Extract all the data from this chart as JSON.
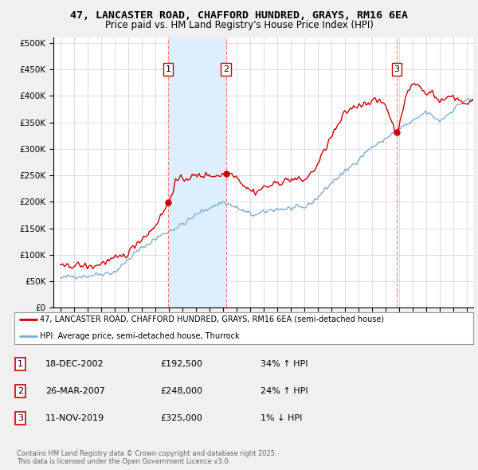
{
  "title": "47, LANCASTER ROAD, CHAFFORD HUNDRED, GRAYS, RM16 6EA",
  "subtitle": "Price paid vs. HM Land Registry's House Price Index (HPI)",
  "legend_line1": "47, LANCASTER ROAD, CHAFFORD HUNDRED, GRAYS, RM16 6EA (semi-detached house)",
  "legend_line2": "HPI: Average price, semi-detached house, Thurrock",
  "transactions": [
    {
      "num": 1,
      "date": "18-DEC-2002",
      "price": "£192,500",
      "hpi": "34% ↑ HPI",
      "year": 2002.96,
      "price_val": 192500
    },
    {
      "num": 2,
      "date": "26-MAR-2007",
      "price": "£248,000",
      "hpi": "24% ↑ HPI",
      "year": 2007.23,
      "price_val": 248000
    },
    {
      "num": 3,
      "date": "11-NOV-2019",
      "price": "£325,000",
      "hpi": "1% ↓ HPI",
      "year": 2019.86,
      "price_val": 325000
    }
  ],
  "footer": "Contains HM Land Registry data © Crown copyright and database right 2025.\nThis data is licensed under the Open Government Licence v3.0.",
  "vline_dates": [
    2002.96,
    2007.23,
    2019.86
  ],
  "shade_between_vlines": [
    0,
    1
  ],
  "ylim": [
    0,
    510000
  ],
  "yticks": [
    0,
    50000,
    100000,
    150000,
    200000,
    250000,
    300000,
    350000,
    400000,
    450000,
    500000
  ],
  "xlim": [
    1994.5,
    2025.5
  ],
  "hpi_color": "#7bafd4",
  "price_color": "#cc0000",
  "vline_color": "#ff8888",
  "shade_color": "#ddeeff",
  "background_color": "#f0f0f0",
  "plot_bg": "#ffffff",
  "grid_color": "#d0d0d0"
}
